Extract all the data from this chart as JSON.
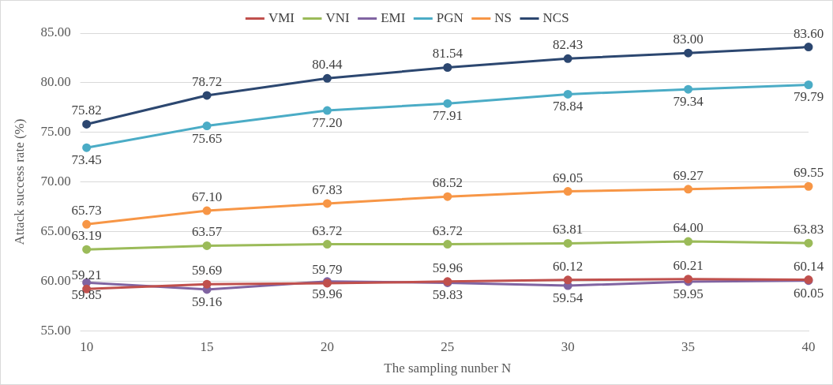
{
  "chart_data": {
    "type": "line",
    "xlabel": "The sampling nunber N",
    "ylabel": "Attack success rate (%)",
    "categories": [
      "10",
      "15",
      "20",
      "25",
      "30",
      "35",
      "40"
    ],
    "ylim": [
      55,
      85
    ],
    "yticks": [
      {
        "value": 55,
        "label": "55.00"
      },
      {
        "value": 60,
        "label": "60.00"
      },
      {
        "value": 65,
        "label": "65.00"
      },
      {
        "value": 70,
        "label": "70.00"
      },
      {
        "value": 75,
        "label": "75.00"
      },
      {
        "value": 80,
        "label": "80.00"
      },
      {
        "value": 85,
        "label": "85.00"
      }
    ],
    "grid": "y",
    "legend": "top",
    "marker": "circle",
    "line_style": "solid",
    "series": [
      {
        "name": "VMI",
        "color": "#c0504d",
        "values": [
          59.21,
          59.69,
          59.79,
          59.96,
          60.12,
          60.21,
          60.14
        ],
        "value_labels": [
          "59.21",
          "59.69",
          "59.79",
          "59.96",
          "60.12",
          "60.21",
          "60.14"
        ]
      },
      {
        "name": "VNI",
        "color": "#9bbb59",
        "values": [
          63.19,
          63.57,
          63.72,
          63.72,
          63.81,
          64.0,
          63.83
        ],
        "value_labels": [
          "63.19",
          "63.57",
          "63.72",
          "63.72",
          "63.81",
          "64.00",
          "63.83"
        ]
      },
      {
        "name": "EMI",
        "color": "#8064a2",
        "values": [
          59.85,
          59.16,
          59.96,
          59.83,
          59.54,
          59.95,
          60.05
        ],
        "value_labels": [
          "59.85",
          "59.16",
          "59.96",
          "59.83",
          "59.54",
          "59.95",
          "60.05"
        ]
      },
      {
        "name": "PGN",
        "color": "#4bacc6",
        "values": [
          73.45,
          75.65,
          77.2,
          77.91,
          78.84,
          79.34,
          79.79
        ],
        "value_labels": [
          "73.45",
          "75.65",
          "77.20",
          "77.91",
          "78.84",
          "79.34",
          "79.79"
        ]
      },
      {
        "name": "NS",
        "color": "#f79646",
        "values": [
          65.73,
          67.1,
          67.83,
          68.52,
          69.05,
          69.27,
          69.55
        ],
        "value_labels": [
          "65.73",
          "67.10",
          "67.83",
          "68.52",
          "69.05",
          "69.27",
          "69.55"
        ]
      },
      {
        "name": "NCS",
        "color": "#2c4770",
        "values": [
          75.82,
          78.72,
          80.44,
          81.54,
          82.43,
          83.0,
          83.6
        ],
        "value_labels": [
          "75.82",
          "78.72",
          "80.44",
          "81.54",
          "82.43",
          "83.00",
          "83.60"
        ]
      }
    ]
  }
}
